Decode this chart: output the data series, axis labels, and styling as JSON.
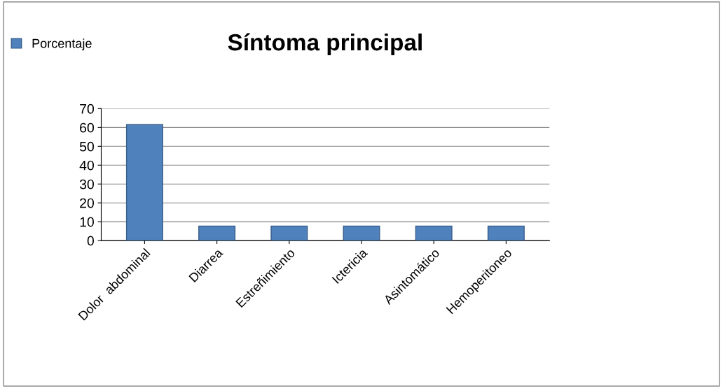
{
  "chart_data": {
    "type": "bar",
    "title": "Síntoma principal",
    "categories": [
      "Dolor  abdominal",
      "Diarrea",
      "Estreñimiento",
      "Ictericia",
      "Asintomático",
      "Hemoperitoneo"
    ],
    "series": [
      {
        "name": "Porcentaje",
        "color": "#4f81bd",
        "values": [
          61.5,
          7.7,
          7.7,
          7.7,
          7.7,
          7.7
        ]
      }
    ],
    "ylim": [
      0,
      70
    ],
    "yticks": [
      0,
      10,
      20,
      30,
      40,
      50,
      60,
      70
    ],
    "grid": "y",
    "legend": "top left"
  }
}
